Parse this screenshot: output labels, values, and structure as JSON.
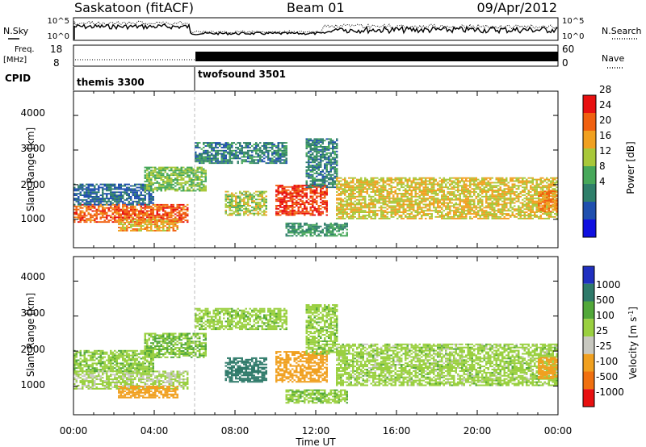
{
  "header": {
    "station": "Saskatoon (fitACF)",
    "beam": "Beam 01",
    "date": "09/Apr/2012"
  },
  "noise_panel": {
    "left_label": "N.Sky",
    "right_label": "N.Search",
    "left_ticks": [
      "10^5",
      "10^0"
    ],
    "right_ticks": [
      "10^5",
      "10^0"
    ]
  },
  "freq_panel": {
    "left_label_1": "Freq.",
    "left_label_2": "[MHz]",
    "left_ticks": [
      "18",
      "8"
    ],
    "right_label": "Nave",
    "right_ticks": [
      "60",
      "0"
    ]
  },
  "cpid_panel": {
    "label": "CPID",
    "modes": [
      {
        "name": "themis 3300",
        "start_hour": 0,
        "end_hour": 6
      },
      {
        "name": "twofsound 3501",
        "start_hour": 6,
        "end_hour": 24
      }
    ]
  },
  "x_axis": {
    "label": "Time UT",
    "ticks": [
      "00:00",
      "04:00",
      "08:00",
      "12:00",
      "16:00",
      "20:00",
      "00:00"
    ]
  },
  "power_panel": {
    "ylabel": "Slant Range [km]",
    "yticks": [
      "1000",
      "2000",
      "3000",
      "4000"
    ],
    "colorbar_label": "Power [dB]",
    "colorbar_ticks": [
      "4",
      "8",
      "12",
      "16",
      "20",
      "24",
      "28"
    ]
  },
  "velocity_panel": {
    "ylabel": "Slant Range [km]",
    "yticks": [
      "1000",
      "2000",
      "3000",
      "4000"
    ],
    "colorbar_label": "Velocity [m s",
    "colorbar_label_sup": "-1",
    "colorbar_label_end": "]",
    "colorbar_ticks": [
      "1000",
      "500",
      "100",
      "25",
      "-25",
      "-100",
      "-500",
      "-1000"
    ]
  },
  "colors": {
    "power_scale": [
      "#1010e0",
      "#1f4fae",
      "#2f7f6a",
      "#47a85a",
      "#a8c83a",
      "#f0a020",
      "#f06010",
      "#e81010"
    ],
    "velocity_scale": [
      "#2030c0",
      "#2f7a6a",
      "#52a83a",
      "#9ad040",
      "#c8c8c0",
      "#f0a020",
      "#f07010",
      "#e81010"
    ]
  },
  "chart_data": {
    "type": "heatmap",
    "x_range_hours": [
      0,
      24
    ],
    "y_range_km": [
      180,
      4700
    ],
    "power_colorbar_range_db": [
      0,
      32
    ],
    "regions": [
      {
        "start_hour": 0.0,
        "end_hour": 5.6,
        "range_km": [
          900,
          1400
        ],
        "power_db": 26,
        "velocity_ms": -15
      },
      {
        "start_hour": 2.2,
        "end_hour": 5.1,
        "range_km": [
          650,
          1000
        ],
        "power_db": 22,
        "velocity_ms": -300
      },
      {
        "start_hour": 0.0,
        "end_hour": 4.0,
        "range_km": [
          1400,
          2000
        ],
        "power_db": 8,
        "velocity_ms": 10
      },
      {
        "start_hour": 3.5,
        "end_hour": 6.5,
        "range_km": [
          1800,
          2500
        ],
        "power_db": 16,
        "velocity_ms": 20
      },
      {
        "start_hour": 6.0,
        "end_hour": 10.5,
        "range_km": [
          2600,
          3200
        ],
        "power_db": 10,
        "velocity_ms": 5
      },
      {
        "start_hour": 7.5,
        "end_hour": 9.5,
        "range_km": [
          1100,
          1800
        ],
        "power_db": 18,
        "velocity_ms": 200
      },
      {
        "start_hour": 10.0,
        "end_hour": 12.5,
        "range_km": [
          1100,
          2000
        ],
        "power_db": 28,
        "velocity_ms": -400
      },
      {
        "start_hour": 11.5,
        "end_hour": 13.0,
        "range_km": [
          1900,
          3300
        ],
        "power_db": 10,
        "velocity_ms": 5
      },
      {
        "start_hour": 13.0,
        "end_hour": 24.0,
        "range_km": [
          1000,
          2200
        ],
        "power_db": 20,
        "velocity_ms": 0
      },
      {
        "start_hour": 10.5,
        "end_hour": 13.5,
        "range_km": [
          500,
          900
        ],
        "power_db": 12,
        "velocity_ms": 10
      },
      {
        "start_hour": 23.0,
        "end_hour": 24.0,
        "range_km": [
          1200,
          1800
        ],
        "power_db": 24,
        "velocity_ms": -150
      }
    ]
  }
}
